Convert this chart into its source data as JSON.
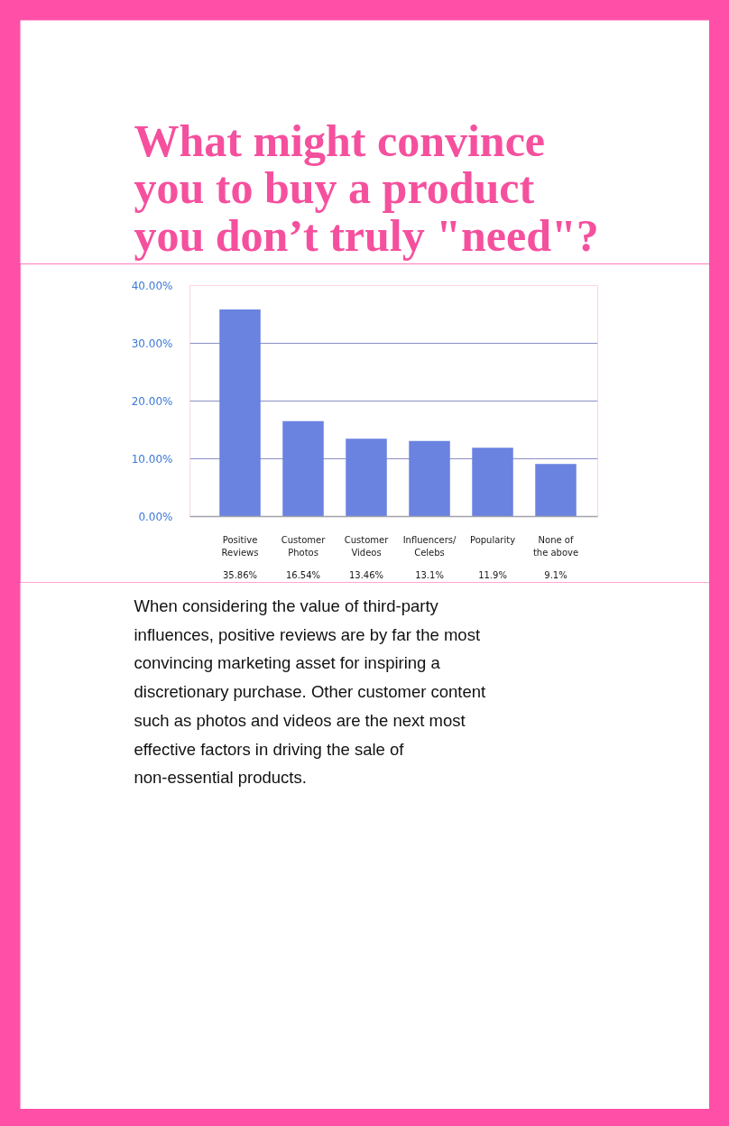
{
  "chart_data": {
    "type": "bar",
    "title": "What might convince you to buy a product you don’t truly \"need\"?",
    "categories": [
      "Positive Reviews",
      "Customer Photos",
      "Customer Videos",
      "Influencers/ Celebs",
      "Popularity",
      "None of the above"
    ],
    "values": [
      35.86,
      16.54,
      13.46,
      13.1,
      11.9,
      9.1
    ],
    "value_labels": [
      "35.86%",
      "16.54%",
      "13.46%",
      "13.1%",
      "11.9%",
      "9.1%"
    ],
    "color": "#6a82e0",
    "ylim": [
      0,
      40
    ],
    "yticks": [
      {
        "value": 0,
        "label": "0.00%"
      },
      {
        "value": 10,
        "label": "10.00%"
      },
      {
        "value": 20,
        "label": "20.00%"
      },
      {
        "value": 30,
        "label": "30.00%"
      },
      {
        "value": 40,
        "label": "40.00%"
      }
    ],
    "grid": "y",
    "annotations": [
      "When considering the value of third-party influences, positive reviews are by far the most convincing marketing asset for inspiring a discretionary purchase. Other customer content such as photos and videos are the next most effective factors in driving the sale of non-essential products."
    ]
  }
}
